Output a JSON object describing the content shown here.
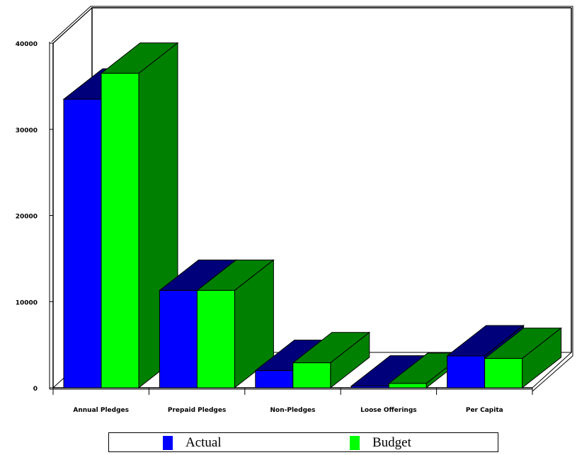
{
  "chart_data": {
    "type": "bar",
    "categories": [
      "Annual Pledges",
      "Prepaid Pledges",
      "Non-Pledges",
      "Loose Offerings",
      "Per Capita"
    ],
    "series": [
      {
        "name": "Actual",
        "values": [
          33500,
          11300,
          2000,
          200,
          3700
        ]
      },
      {
        "name": "Budget",
        "values": [
          36500,
          11300,
          2900,
          500,
          3400
        ]
      }
    ],
    "ylim": [
      0,
      40000
    ],
    "yticks": [
      0,
      10000,
      20000,
      30000,
      40000
    ],
    "title": "",
    "xlabel": "",
    "ylabel": "",
    "legend_position": "bottom",
    "colors": {
      "Actual": {
        "front": "#0000ff",
        "side": "#00007a"
      },
      "Budget": {
        "front": "#00ff00",
        "side": "#008000"
      }
    }
  }
}
